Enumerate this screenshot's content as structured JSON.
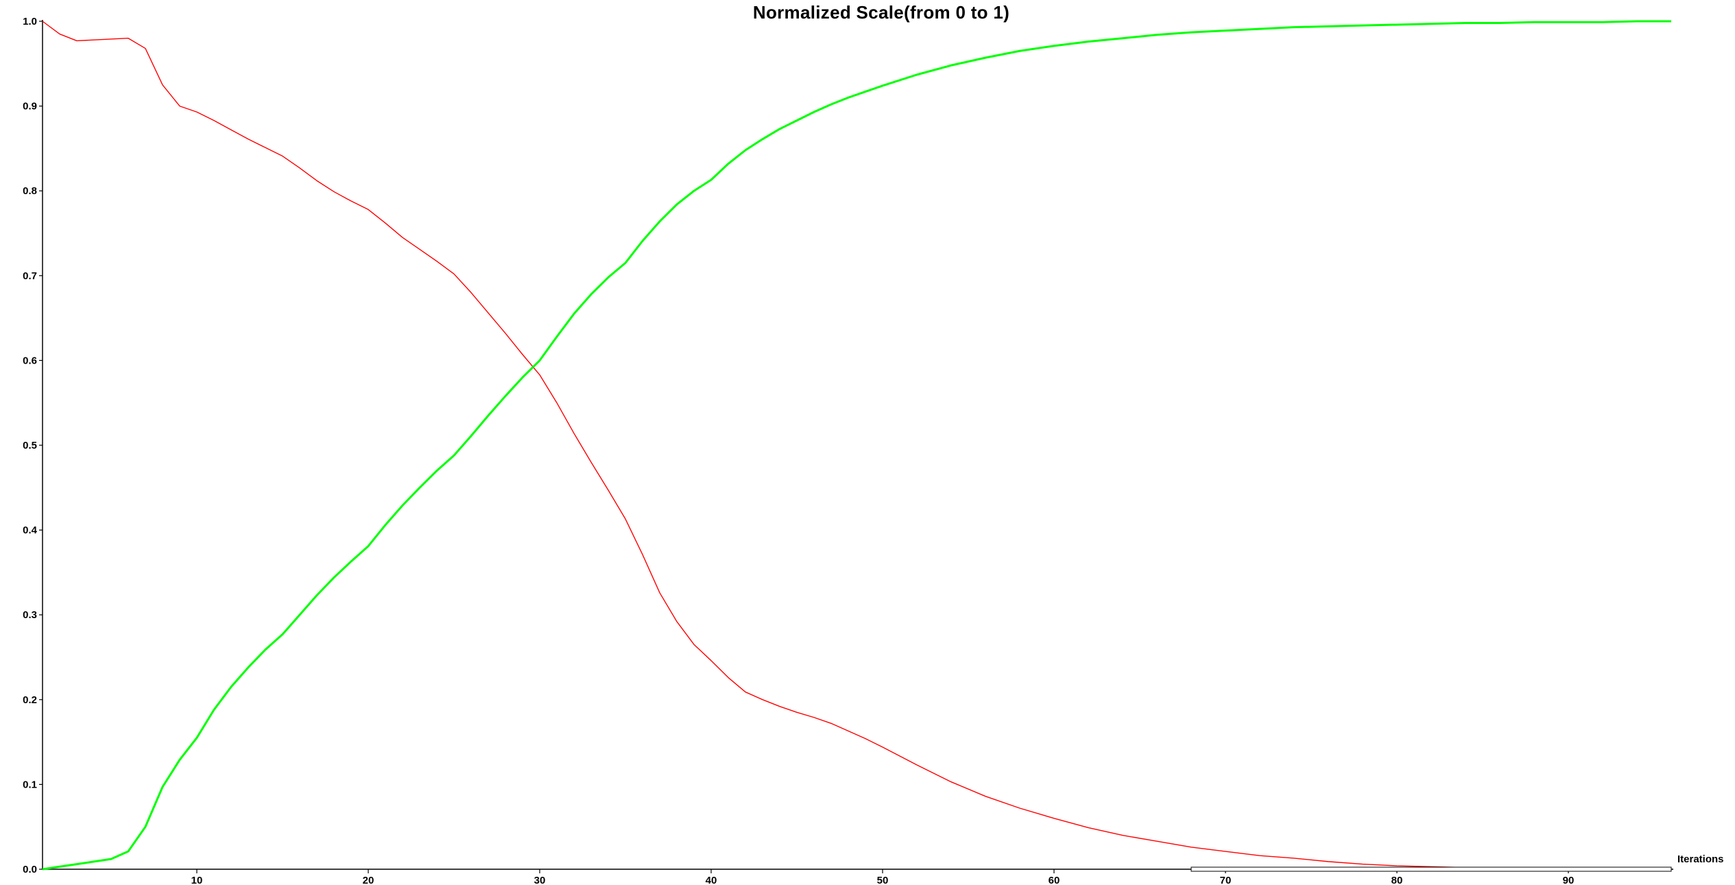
{
  "chart_data": {
    "type": "line",
    "title": "Normalized Scale(from 0 to 1)",
    "xlabel": "Iterations",
    "ylabel": "",
    "xlim": [
      1,
      96
    ],
    "ylim": [
      0,
      1
    ],
    "x_ticks": [
      10,
      20,
      30,
      40,
      50,
      60,
      70,
      80,
      90
    ],
    "y_ticks": [
      "0.0",
      "0.1",
      "0.2",
      "0.3",
      "0.4",
      "0.5",
      "0.6",
      "0.7",
      "0.8",
      "0.9",
      "1.0"
    ],
    "grid": false,
    "legend": "none",
    "scrollbar": {
      "from": 68,
      "to": 96
    },
    "series": [
      {
        "color": "#ff0000",
        "points": [
          [
            1,
            1.0
          ],
          [
            2,
            0.985
          ],
          [
            3,
            0.977
          ],
          [
            4,
            0.978
          ],
          [
            5,
            0.979
          ],
          [
            6,
            0.98
          ],
          [
            7,
            0.968
          ],
          [
            8,
            0.925
          ],
          [
            9,
            0.9
          ],
          [
            10,
            0.893
          ],
          [
            11,
            0.883
          ],
          [
            12,
            0.872
          ],
          [
            13,
            0.861
          ],
          [
            14,
            0.851
          ],
          [
            15,
            0.841
          ],
          [
            16,
            0.827
          ],
          [
            17,
            0.812
          ],
          [
            18,
            0.799
          ],
          [
            19,
            0.788
          ],
          [
            20,
            0.778
          ],
          [
            21,
            0.762
          ],
          [
            22,
            0.745
          ],
          [
            23,
            0.731
          ],
          [
            24,
            0.717
          ],
          [
            25,
            0.702
          ],
          [
            26,
            0.68
          ],
          [
            27,
            0.656
          ],
          [
            28,
            0.632
          ],
          [
            29,
            0.607
          ],
          [
            30,
            0.583
          ],
          [
            31,
            0.55
          ],
          [
            32,
            0.514
          ],
          [
            33,
            0.48
          ],
          [
            34,
            0.447
          ],
          [
            35,
            0.413
          ],
          [
            36,
            0.371
          ],
          [
            37,
            0.326
          ],
          [
            38,
            0.292
          ],
          [
            39,
            0.265
          ],
          [
            40,
            0.246
          ],
          [
            41,
            0.226
          ],
          [
            42,
            0.209
          ],
          [
            43,
            0.2
          ],
          [
            44,
            0.192
          ],
          [
            45,
            0.185
          ],
          [
            46,
            0.179
          ],
          [
            47,
            0.172
          ],
          [
            48,
            0.163
          ],
          [
            49,
            0.154
          ],
          [
            50,
            0.144
          ],
          [
            52,
            0.123
          ],
          [
            54,
            0.103
          ],
          [
            56,
            0.086
          ],
          [
            58,
            0.072
          ],
          [
            60,
            0.06
          ],
          [
            62,
            0.049
          ],
          [
            64,
            0.04
          ],
          [
            66,
            0.033
          ],
          [
            68,
            0.026
          ],
          [
            70,
            0.021
          ],
          [
            72,
            0.016
          ],
          [
            74,
            0.013
          ],
          [
            76,
            0.009
          ],
          [
            78,
            0.006
          ],
          [
            80,
            0.004
          ],
          [
            82,
            0.003
          ],
          [
            84,
            0.002
          ],
          [
            86,
            0.001
          ],
          [
            88,
            0.001
          ],
          [
            90,
            0.0
          ],
          [
            92,
            0.0
          ],
          [
            94,
            0.0
          ],
          [
            96,
            0.0
          ]
        ]
      },
      {
        "color": "#00ff00",
        "points": [
          [
            1,
            0.0
          ],
          [
            2,
            0.003
          ],
          [
            3,
            0.006
          ],
          [
            4,
            0.009
          ],
          [
            5,
            0.012
          ],
          [
            6,
            0.021
          ],
          [
            7,
            0.05
          ],
          [
            8,
            0.097
          ],
          [
            9,
            0.129
          ],
          [
            10,
            0.155
          ],
          [
            11,
            0.188
          ],
          [
            12,
            0.215
          ],
          [
            13,
            0.238
          ],
          [
            14,
            0.259
          ],
          [
            15,
            0.277
          ],
          [
            16,
            0.3
          ],
          [
            17,
            0.323
          ],
          [
            18,
            0.344
          ],
          [
            19,
            0.363
          ],
          [
            20,
            0.381
          ],
          [
            21,
            0.406
          ],
          [
            22,
            0.429
          ],
          [
            23,
            0.45
          ],
          [
            24,
            0.47
          ],
          [
            25,
            0.488
          ],
          [
            26,
            0.511
          ],
          [
            27,
            0.535
          ],
          [
            28,
            0.558
          ],
          [
            29,
            0.58
          ],
          [
            30,
            0.6
          ],
          [
            31,
            0.628
          ],
          [
            32,
            0.655
          ],
          [
            33,
            0.678
          ],
          [
            34,
            0.698
          ],
          [
            35,
            0.715
          ],
          [
            36,
            0.741
          ],
          [
            37,
            0.764
          ],
          [
            38,
            0.784
          ],
          [
            39,
            0.8
          ],
          [
            40,
            0.813
          ],
          [
            41,
            0.832
          ],
          [
            42,
            0.848
          ],
          [
            43,
            0.861
          ],
          [
            44,
            0.873
          ],
          [
            45,
            0.883
          ],
          [
            46,
            0.893
          ],
          [
            47,
            0.902
          ],
          [
            48,
            0.91
          ],
          [
            49,
            0.917
          ],
          [
            50,
            0.924
          ],
          [
            52,
            0.937
          ],
          [
            54,
            0.948
          ],
          [
            56,
            0.957
          ],
          [
            58,
            0.965
          ],
          [
            60,
            0.971
          ],
          [
            62,
            0.976
          ],
          [
            64,
            0.98
          ],
          [
            66,
            0.984
          ],
          [
            68,
            0.987
          ],
          [
            70,
            0.989
          ],
          [
            72,
            0.991
          ],
          [
            74,
            0.993
          ],
          [
            76,
            0.994
          ],
          [
            78,
            0.995
          ],
          [
            80,
            0.996
          ],
          [
            82,
            0.997
          ],
          [
            84,
            0.998
          ],
          [
            86,
            0.998
          ],
          [
            88,
            0.999
          ],
          [
            90,
            0.999
          ],
          [
            92,
            0.999
          ],
          [
            94,
            1.0
          ],
          [
            96,
            1.0
          ]
        ]
      }
    ]
  }
}
